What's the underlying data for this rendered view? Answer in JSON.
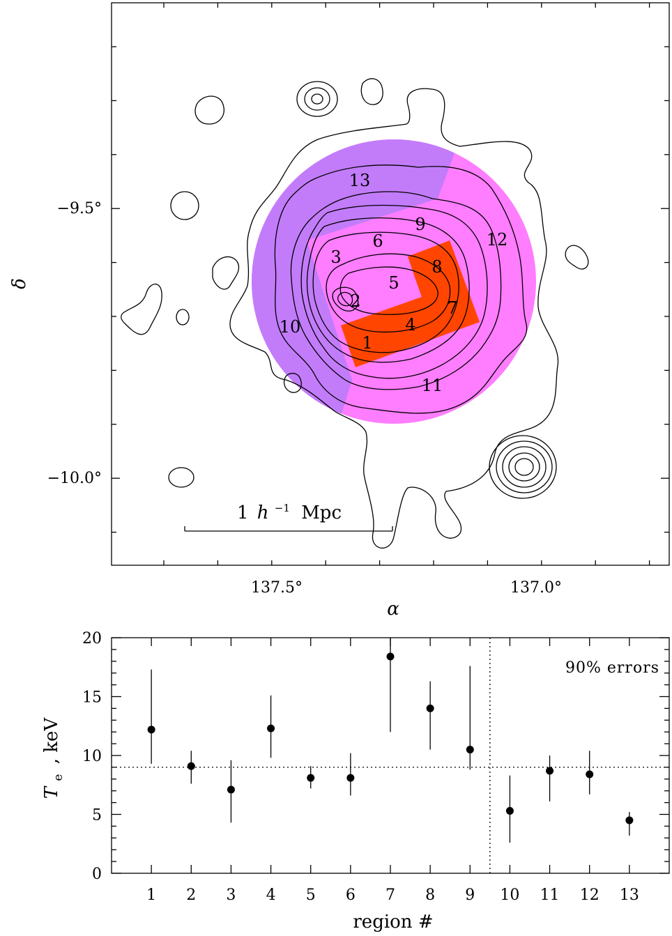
{
  "map": {
    "type": "contour-map",
    "xlabel": "α",
    "ylabel": "δ",
    "x_ticks": [
      "137.5°",
      "137.0°"
    ],
    "y_ticks": [
      "−9.5°",
      "−10.0°"
    ],
    "scalebar": {
      "prefix": "1",
      "h": "h",
      "exp": "−1",
      "unit": "Mpc"
    },
    "region_labels": [
      "1",
      "2",
      "3",
      "4",
      "5",
      "6",
      "7",
      "8",
      "9",
      "10",
      "11",
      "12",
      "13"
    ],
    "colors": {
      "outer_west_region": "#c27cfa",
      "main_region": "#ff7dff",
      "hot_region": "#ff4500",
      "contour": "#000000"
    }
  },
  "chart_data": {
    "type": "scatter",
    "xlabel": "region #",
    "ylabel_symbol": "T",
    "ylabel_sub": "e",
    "ylabel_rest": ", keV",
    "note": "90% errors",
    "x_ticks": [
      "1",
      "2",
      "3",
      "4",
      "5",
      "6",
      "7",
      "8",
      "9",
      "10",
      "11",
      "12",
      "13"
    ],
    "y_ticks": [
      "0",
      "5",
      "10",
      "15",
      "20"
    ],
    "ylim": [
      0,
      20
    ],
    "xlim": [
      0,
      14
    ],
    "points": [
      {
        "x": 1,
        "y": 12.2,
        "lo": 9.3,
        "hi": 17.3
      },
      {
        "x": 2,
        "y": 9.1,
        "lo": 7.6,
        "hi": 10.4
      },
      {
        "x": 3,
        "y": 7.1,
        "lo": 4.3,
        "hi": 9.6
      },
      {
        "x": 4,
        "y": 12.3,
        "lo": 9.8,
        "hi": 15.1
      },
      {
        "x": 5,
        "y": 8.1,
        "lo": 7.2,
        "hi": 9.1
      },
      {
        "x": 6,
        "y": 8.1,
        "lo": 6.6,
        "hi": 10.2
      },
      {
        "x": 7,
        "y": 18.4,
        "lo": 12.0,
        "hi": 20.0
      },
      {
        "x": 8,
        "y": 14.0,
        "lo": 10.5,
        "hi": 16.3
      },
      {
        "x": 9,
        "y": 10.5,
        "lo": 8.8,
        "hi": 17.6
      },
      {
        "x": 10,
        "y": 5.3,
        "lo": 2.6,
        "hi": 8.3
      },
      {
        "x": 11,
        "y": 8.7,
        "lo": 6.1,
        "hi": 10.0
      },
      {
        "x": 12,
        "y": 8.4,
        "lo": 6.7,
        "hi": 10.4
      },
      {
        "x": 13,
        "y": 4.5,
        "lo": 3.2,
        "hi": 5.2
      }
    ],
    "hline_y": 9.0,
    "vline_x": 9.5
  }
}
